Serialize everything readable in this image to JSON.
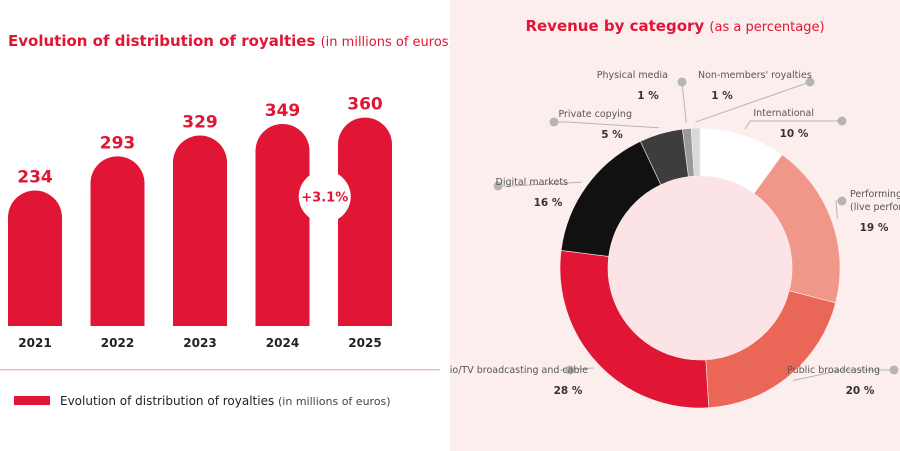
{
  "colors": {
    "brand_red": "#e11534",
    "right_bg": "#fdeeee",
    "text_dark": "#222222",
    "muted": "#555555",
    "leader": "#b5b5b5"
  },
  "chart_data": [
    {
      "type": "bar",
      "title": "Evolution of distribution of royalties",
      "title_unit": "(in millions of euros)",
      "categories": [
        "2021",
        "2022",
        "2023",
        "2024",
        "2025"
      ],
      "values": [
        234,
        293,
        329,
        349,
        360
      ],
      "ylim": [
        0,
        380
      ],
      "annotation": "+3.1%",
      "legend": {
        "label": "Evolution of distribution of royalties",
        "unit": "(in millions of euros)",
        "position": "bottom-left"
      },
      "bar_color": "#e11534",
      "grid": false
    },
    {
      "type": "pie",
      "donut": true,
      "title": "Revenue by category",
      "title_unit": "(as a percentage)",
      "slices": [
        {
          "label": "International",
          "label_lines": [
            "International"
          ],
          "value": 10,
          "value_label": "10 %",
          "color": "#ffffff"
        },
        {
          "label": "Performing arts (live performances)",
          "label_lines": [
            "Performing arts",
            "(live perfomances)"
          ],
          "value": 19,
          "value_label": "19 %",
          "color": "#f0978a"
        },
        {
          "label": "Public broadcasting",
          "label_lines": [
            "Public broadcasting"
          ],
          "value": 20,
          "value_label": "20 %",
          "color": "#ea6657"
        },
        {
          "label": "Radio/TV broadcasting and cable",
          "label_lines": [
            "Radio/TV broadcasting and cable"
          ],
          "value": 28,
          "value_label": "28 %",
          "color": "#e11534"
        },
        {
          "label": "Digital markets",
          "label_lines": [
            "Digital markets"
          ],
          "value": 16,
          "value_label": "16 %",
          "color": "#111111"
        },
        {
          "label": "Private copying",
          "label_lines": [
            "Private copying"
          ],
          "value": 5,
          "value_label": "5 %",
          "color": "#3d3d3d"
        },
        {
          "label": "Physical media",
          "label_lines": [
            "Physical media"
          ],
          "value": 1,
          "value_label": "1 %",
          "color": "#9a9a9a"
        },
        {
          "label": "Non-members' royalties",
          "label_lines": [
            "Non-members' royalties"
          ],
          "value": 1,
          "value_label": "1 %",
          "color": "#d9d9d9"
        }
      ],
      "legend": "callouts"
    }
  ]
}
